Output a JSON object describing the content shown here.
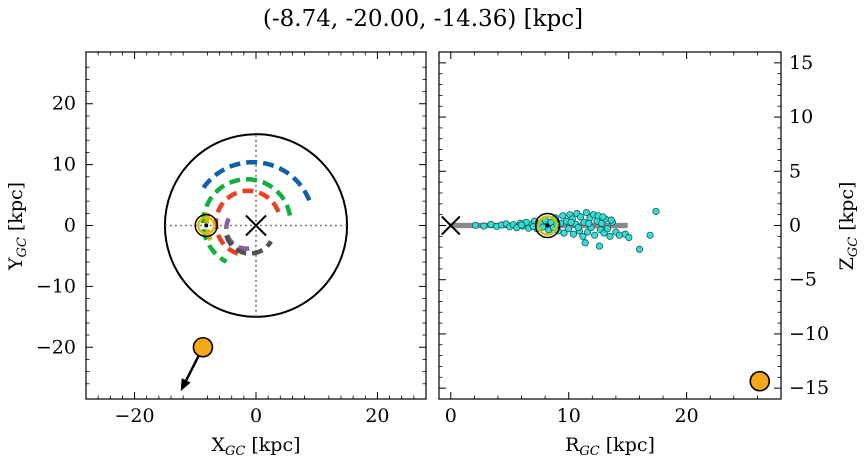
{
  "figure": {
    "title": "(-8.74, -20.00, -14.36) [kpc]"
  },
  "chart_data": [
    {
      "type": "scatter",
      "panel": "left",
      "xlabel": "X_GC [kpc]",
      "ylabel": "Y_GC [kpc]",
      "xlim": [
        -28,
        28
      ],
      "ylim": [
        -28.5,
        28.5
      ],
      "xticks": [
        -20,
        0,
        20
      ],
      "yticks": [
        -20,
        -10,
        0,
        10,
        20
      ],
      "tick_labels": {
        "x": [
          "−20",
          "0",
          "20"
        ],
        "y": [
          "−20",
          "−10",
          "0",
          "10",
          "20"
        ]
      },
      "galaxy_circle_radius": 15,
      "galactic_center": [
        0,
        0
      ],
      "sun": [
        -8.2,
        0
      ],
      "object": [
        -8.74,
        -20.0
      ],
      "velocity_arrow_to": [
        -12.4,
        -27.2
      ],
      "spiral_arms": [
        {
          "name": "arm-blue",
          "color": "#1060a8",
          "cx": -0.5,
          "cy": 0.4,
          "r": 10.0,
          "start_deg": 22,
          "end_deg": 148
        },
        {
          "name": "arm-green",
          "color": "#10b040",
          "cx": -1.5,
          "cy": 0.4,
          "r": 7.2,
          "start_deg": 10,
          "end_deg": 242
        },
        {
          "name": "arm-red",
          "color": "#ee4020",
          "cx": -1.3,
          "cy": 0.4,
          "r": 5.3,
          "start_deg": 20,
          "end_deg": 262
        },
        {
          "name": "arm-purple",
          "color": "#8860a0",
          "cx": -1.6,
          "cy": -0.5,
          "r": 3.3,
          "start_deg": 150,
          "end_deg": 296
        },
        {
          "name": "arm-gray",
          "color": "#505050",
          "cx": -1.0,
          "cy": -0.6,
          "r": 4.0,
          "start_deg": 195,
          "end_deg": 330
        },
        {
          "name": "arm-yellow",
          "color": "#d8b000",
          "cx": -1.6,
          "cy": 0.4,
          "r": 6.5,
          "start_deg": 165,
          "end_deg": 210
        }
      ]
    },
    {
      "type": "scatter",
      "panel": "right",
      "xlabel": "R_GC [kpc]",
      "ylabel": "Z_GC [kpc]",
      "xlim": [
        -1,
        28
      ],
      "ylim": [
        -16,
        16
      ],
      "xticks": [
        0,
        10,
        20
      ],
      "yticks": [
        -15,
        -10,
        -5,
        0,
        5,
        10,
        15
      ],
      "tick_labels": {
        "x": [
          "0",
          "10",
          "20"
        ],
        "y": [
          "−15",
          "−10",
          "−5",
          "0",
          "5",
          "10",
          "15"
        ]
      },
      "galactic_center": [
        0,
        0
      ],
      "sun": [
        8.2,
        0
      ],
      "object": [
        26.2,
        -14.36
      ],
      "disk_range": [
        0,
        15
      ],
      "stars": [
        [
          2.1,
          0.02
        ],
        [
          2.8,
          -0.05
        ],
        [
          3.4,
          0.1
        ],
        [
          3.9,
          -0.08
        ],
        [
          4.3,
          0.05
        ],
        [
          4.7,
          0.15
        ],
        [
          5.0,
          -0.12
        ],
        [
          5.3,
          0.08
        ],
        [
          5.6,
          -0.2
        ],
        [
          5.9,
          0.22
        ],
        [
          6.1,
          -0.05
        ],
        [
          6.4,
          0.3
        ],
        [
          6.6,
          -0.25
        ],
        [
          6.9,
          0.12
        ],
        [
          7.1,
          0.4
        ],
        [
          7.3,
          -0.3
        ],
        [
          7.6,
          0.2
        ],
        [
          7.8,
          -0.15
        ],
        [
          8.0,
          0.5
        ],
        [
          8.3,
          -0.4
        ],
        [
          8.5,
          0.3
        ],
        [
          8.7,
          -0.2
        ],
        [
          8.9,
          0.7
        ],
        [
          9.1,
          -0.5
        ],
        [
          9.3,
          0.2
        ],
        [
          9.5,
          0.9
        ],
        [
          9.6,
          -0.7
        ],
        [
          9.8,
          0.4
        ],
        [
          10.0,
          -0.3
        ],
        [
          10.1,
          1.0
        ],
        [
          10.3,
          0.6
        ],
        [
          10.4,
          -0.8
        ],
        [
          10.6,
          0.1
        ],
        [
          10.7,
          1.1
        ],
        [
          10.9,
          -0.5
        ],
        [
          11.0,
          0.8
        ],
        [
          11.2,
          -1.0
        ],
        [
          11.3,
          0.3
        ],
        [
          11.5,
          1.2
        ],
        [
          11.6,
          -0.6
        ],
        [
          11.8,
          0.7
        ],
        [
          11.9,
          -0.2
        ],
        [
          12.1,
          1.0
        ],
        [
          12.2,
          -0.9
        ],
        [
          12.4,
          0.4
        ],
        [
          12.5,
          0.9
        ],
        [
          12.7,
          -0.4
        ],
        [
          12.8,
          0.2
        ],
        [
          13.0,
          -0.7
        ],
        [
          13.1,
          0.6
        ],
        [
          13.3,
          -0.3
        ],
        [
          13.5,
          -1.0
        ],
        [
          13.7,
          0.3
        ],
        [
          14.0,
          -0.6
        ],
        [
          14.3,
          -0.9
        ],
        [
          14.8,
          -0.8
        ],
        [
          15.1,
          -1.1
        ],
        [
          16.0,
          -2.2
        ],
        [
          16.9,
          -0.9
        ],
        [
          17.4,
          1.3
        ],
        [
          11.4,
          -1.6
        ],
        [
          12.6,
          -1.9
        ],
        [
          10.2,
          0.3
        ],
        [
          9.0,
          0.1
        ],
        [
          7.0,
          -0.1
        ],
        [
          6.0,
          0.05
        ],
        [
          11.7,
          0.2
        ],
        [
          12.9,
          0.8
        ],
        [
          13.6,
          0.5
        ],
        [
          10.8,
          -0.2
        ]
      ]
    }
  ]
}
